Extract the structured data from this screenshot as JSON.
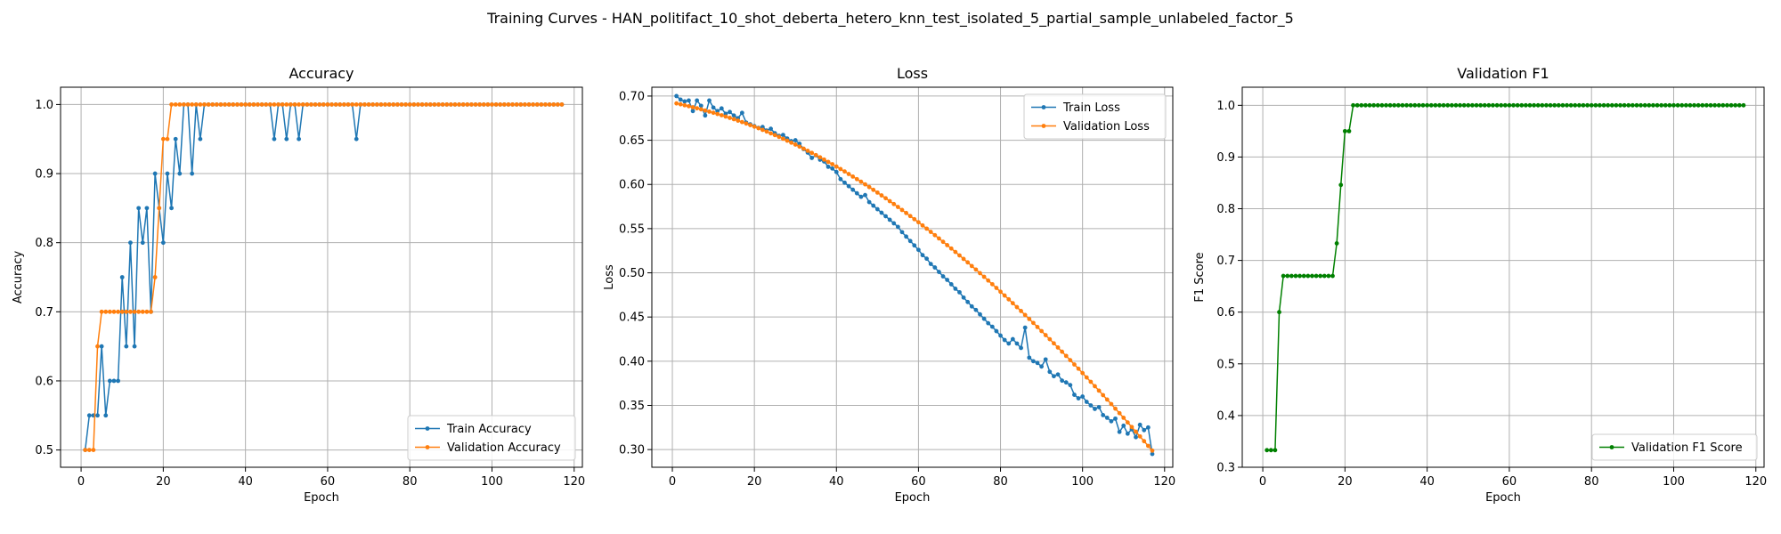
{
  "figure": {
    "suptitle": "Training Curves - HAN_politifact_10_shot_deberta_hetero_knn_test_isolated_5_partial_sample_unlabeled_factor_5"
  },
  "colors": {
    "blue": "#1f77b4",
    "orange": "#ff7f0e",
    "green": "#008000",
    "grid": "#b0b0b0"
  },
  "chart_data": [
    {
      "type": "line",
      "title": "Accuracy",
      "xlabel": "Epoch",
      "ylabel": "Accuracy",
      "xlim": [
        -5,
        122
      ],
      "ylim": [
        0.475,
        1.025
      ],
      "xticks": [
        0,
        20,
        40,
        60,
        80,
        100,
        120
      ],
      "yticks": [
        0.5,
        0.6,
        0.7,
        0.8,
        0.9,
        1.0
      ],
      "yticklabels": [
        "0.5",
        "0.6",
        "0.7",
        "0.8",
        "0.9",
        "1.0"
      ],
      "grid": true,
      "legend_position": "lower-right",
      "series": [
        {
          "name": "Train Accuracy",
          "color": "#1f77b4",
          "start_epoch": 1,
          "values": [
            0.5,
            0.55,
            0.55,
            0.55,
            0.65,
            0.55,
            0.6,
            0.6,
            0.6,
            0.75,
            0.65,
            0.8,
            0.65,
            0.85,
            0.8,
            0.85,
            0.7,
            0.9,
            0.85,
            0.8,
            0.9,
            0.85,
            0.95,
            0.9,
            1.0,
            1.0,
            0.9,
            1.0,
            0.95,
            1.0,
            1.0,
            1.0,
            1.0,
            1.0,
            1.0,
            1.0,
            1.0,
            1.0,
            1.0,
            1.0,
            1.0,
            1.0,
            1.0,
            1.0,
            1.0,
            1.0,
            0.95,
            1.0,
            1.0,
            0.95,
            1.0,
            1.0,
            0.95,
            1.0,
            1.0,
            1.0,
            1.0,
            1.0,
            1.0,
            1.0,
            1.0,
            1.0,
            1.0,
            1.0,
            1.0,
            1.0,
            0.95,
            1.0,
            1.0,
            1.0,
            1.0,
            1.0,
            1.0,
            1.0,
            1.0,
            1.0,
            1.0,
            1.0,
            1.0,
            1.0,
            1.0,
            1.0,
            1.0,
            1.0,
            1.0,
            1.0,
            1.0,
            1.0,
            1.0,
            1.0,
            1.0,
            1.0,
            1.0,
            1.0,
            1.0,
            1.0,
            1.0,
            1.0,
            1.0,
            1.0,
            1.0,
            1.0,
            1.0,
            1.0,
            1.0,
            1.0,
            1.0,
            1.0,
            1.0,
            1.0,
            1.0,
            1.0,
            1.0,
            1.0,
            1.0,
            1.0,
            1.0
          ]
        },
        {
          "name": "Validation Accuracy",
          "color": "#ff7f0e",
          "start_epoch": 1,
          "values": [
            0.5,
            0.5,
            0.5,
            0.65,
            0.7,
            0.7,
            0.7,
            0.7,
            0.7,
            0.7,
            0.7,
            0.7,
            0.7,
            0.7,
            0.7,
            0.7,
            0.7,
            0.75,
            0.85,
            0.95,
            0.95,
            1.0,
            1.0,
            1.0,
            1.0,
            1.0,
            1.0,
            1.0,
            1.0,
            1.0,
            1.0,
            1.0,
            1.0,
            1.0,
            1.0,
            1.0,
            1.0,
            1.0,
            1.0,
            1.0,
            1.0,
            1.0,
            1.0,
            1.0,
            1.0,
            1.0,
            1.0,
            1.0,
            1.0,
            1.0,
            1.0,
            1.0,
            1.0,
            1.0,
            1.0,
            1.0,
            1.0,
            1.0,
            1.0,
            1.0,
            1.0,
            1.0,
            1.0,
            1.0,
            1.0,
            1.0,
            1.0,
            1.0,
            1.0,
            1.0,
            1.0,
            1.0,
            1.0,
            1.0,
            1.0,
            1.0,
            1.0,
            1.0,
            1.0,
            1.0,
            1.0,
            1.0,
            1.0,
            1.0,
            1.0,
            1.0,
            1.0,
            1.0,
            1.0,
            1.0,
            1.0,
            1.0,
            1.0,
            1.0,
            1.0,
            1.0,
            1.0,
            1.0,
            1.0,
            1.0,
            1.0,
            1.0,
            1.0,
            1.0,
            1.0,
            1.0,
            1.0,
            1.0,
            1.0,
            1.0,
            1.0,
            1.0,
            1.0,
            1.0,
            1.0,
            1.0,
            1.0
          ]
        }
      ]
    },
    {
      "type": "line",
      "title": "Loss",
      "xlabel": "Epoch",
      "ylabel": "Loss",
      "xlim": [
        -5,
        122
      ],
      "ylim": [
        0.28,
        0.71
      ],
      "xticks": [
        0,
        20,
        40,
        60,
        80,
        100,
        120
      ],
      "yticks": [
        0.3,
        0.35,
        0.4,
        0.45,
        0.5,
        0.55,
        0.6,
        0.65,
        0.7
      ],
      "yticklabels": [
        "0.30",
        "0.35",
        "0.40",
        "0.45",
        "0.50",
        "0.55",
        "0.60",
        "0.65",
        "0.70"
      ],
      "grid": true,
      "legend_position": "upper-right",
      "series": [
        {
          "name": "Train Loss",
          "color": "#1f77b4",
          "start_epoch": 1,
          "values": [
            0.7,
            0.696,
            0.694,
            0.695,
            0.683,
            0.695,
            0.689,
            0.678,
            0.695,
            0.687,
            0.683,
            0.686,
            0.68,
            0.682,
            0.678,
            0.675,
            0.681,
            0.67,
            0.668,
            0.666,
            0.664,
            0.665,
            0.661,
            0.663,
            0.658,
            0.655,
            0.656,
            0.652,
            0.649,
            0.65,
            0.646,
            0.64,
            0.636,
            0.63,
            0.633,
            0.628,
            0.626,
            0.62,
            0.618,
            0.614,
            0.606,
            0.602,
            0.598,
            0.594,
            0.59,
            0.586,
            0.588,
            0.58,
            0.576,
            0.572,
            0.568,
            0.564,
            0.56,
            0.556,
            0.552,
            0.546,
            0.541,
            0.536,
            0.531,
            0.526,
            0.52,
            0.516,
            0.51,
            0.506,
            0.501,
            0.496,
            0.492,
            0.487,
            0.482,
            0.478,
            0.472,
            0.467,
            0.462,
            0.458,
            0.453,
            0.448,
            0.443,
            0.439,
            0.434,
            0.429,
            0.424,
            0.42,
            0.425,
            0.42,
            0.415,
            0.438,
            0.404,
            0.4,
            0.398,
            0.394,
            0.402,
            0.388,
            0.383,
            0.385,
            0.378,
            0.376,
            0.373,
            0.362,
            0.358,
            0.36,
            0.354,
            0.35,
            0.346,
            0.348,
            0.339,
            0.336,
            0.332,
            0.335,
            0.32,
            0.327,
            0.318,
            0.323,
            0.314,
            0.328,
            0.322,
            0.325,
            0.295
          ]
        },
        {
          "name": "Validation Loss",
          "color": "#ff7f0e",
          "start_epoch": 1,
          "values": [
            0.6917,
            0.6907,
            0.6896,
            0.6885,
            0.6873,
            0.6862,
            0.685,
            0.6837,
            0.6824,
            0.6811,
            0.6797,
            0.6783,
            0.6768,
            0.6753,
            0.6738,
            0.6722,
            0.6706,
            0.6689,
            0.6671,
            0.6654,
            0.6636,
            0.6617,
            0.6598,
            0.6578,
            0.6558,
            0.6538,
            0.6517,
            0.6495,
            0.6473,
            0.6451,
            0.6428,
            0.6405,
            0.6381,
            0.6357,
            0.6332,
            0.6307,
            0.6281,
            0.6255,
            0.6229,
            0.6202,
            0.6174,
            0.6147,
            0.6118,
            0.6089,
            0.606,
            0.6031,
            0.6001,
            0.597,
            0.5939,
            0.5908,
            0.5876,
            0.5844,
            0.5811,
            0.5778,
            0.5745,
            0.5711,
            0.5677,
            0.5642,
            0.5607,
            0.5572,
            0.5536,
            0.55,
            0.5463,
            0.5426,
            0.5389,
            0.5351,
            0.5313,
            0.5275,
            0.5236,
            0.5197,
            0.5157,
            0.5118,
            0.5077,
            0.5037,
            0.4996,
            0.4955,
            0.4913,
            0.4871,
            0.4829,
            0.4786,
            0.4743,
            0.47,
            0.4656,
            0.4612,
            0.4568,
            0.4523,
            0.4478,
            0.4433,
            0.4387,
            0.4341,
            0.4295,
            0.4249,
            0.4202,
            0.4155,
            0.4107,
            0.406,
            0.4012,
            0.3963,
            0.3915,
            0.3866,
            0.3816,
            0.3767,
            0.3717,
            0.3667,
            0.3616,
            0.3566,
            0.3515,
            0.3463,
            0.3412,
            0.336,
            0.3307,
            0.3255,
            0.3202,
            0.3149,
            0.3095,
            0.3042,
            0.2988
          ]
        }
      ]
    },
    {
      "type": "line",
      "title": "Validation F1",
      "xlabel": "Epoch",
      "ylabel": "F1 Score",
      "xlim": [
        -5,
        122
      ],
      "ylim": [
        0.3,
        1.035
      ],
      "xticks": [
        0,
        20,
        40,
        60,
        80,
        100,
        120
      ],
      "yticks": [
        0.3,
        0.4,
        0.5,
        0.6,
        0.7,
        0.8,
        0.9,
        1.0
      ],
      "yticklabels": [
        "0.3",
        "0.4",
        "0.5",
        "0.6",
        "0.7",
        "0.8",
        "0.9",
        "1.0"
      ],
      "grid": true,
      "legend_position": "lower-right",
      "series": [
        {
          "name": "Validation F1 Score",
          "color": "#008000",
          "start_epoch": 1,
          "values": [
            0.333,
            0.333,
            0.333,
            0.6,
            0.67,
            0.67,
            0.67,
            0.67,
            0.67,
            0.67,
            0.67,
            0.67,
            0.67,
            0.67,
            0.67,
            0.67,
            0.67,
            0.733,
            0.846,
            0.95,
            0.95,
            1.0,
            1.0,
            1.0,
            1.0,
            1.0,
            1.0,
            1.0,
            1.0,
            1.0,
            1.0,
            1.0,
            1.0,
            1.0,
            1.0,
            1.0,
            1.0,
            1.0,
            1.0,
            1.0,
            1.0,
            1.0,
            1.0,
            1.0,
            1.0,
            1.0,
            1.0,
            1.0,
            1.0,
            1.0,
            1.0,
            1.0,
            1.0,
            1.0,
            1.0,
            1.0,
            1.0,
            1.0,
            1.0,
            1.0,
            1.0,
            1.0,
            1.0,
            1.0,
            1.0,
            1.0,
            1.0,
            1.0,
            1.0,
            1.0,
            1.0,
            1.0,
            1.0,
            1.0,
            1.0,
            1.0,
            1.0,
            1.0,
            1.0,
            1.0,
            1.0,
            1.0,
            1.0,
            1.0,
            1.0,
            1.0,
            1.0,
            1.0,
            1.0,
            1.0,
            1.0,
            1.0,
            1.0,
            1.0,
            1.0,
            1.0,
            1.0,
            1.0,
            1.0,
            1.0,
            1.0,
            1.0,
            1.0,
            1.0,
            1.0,
            1.0,
            1.0,
            1.0,
            1.0,
            1.0,
            1.0,
            1.0,
            1.0,
            1.0,
            1.0,
            1.0,
            1.0
          ]
        }
      ]
    }
  ]
}
